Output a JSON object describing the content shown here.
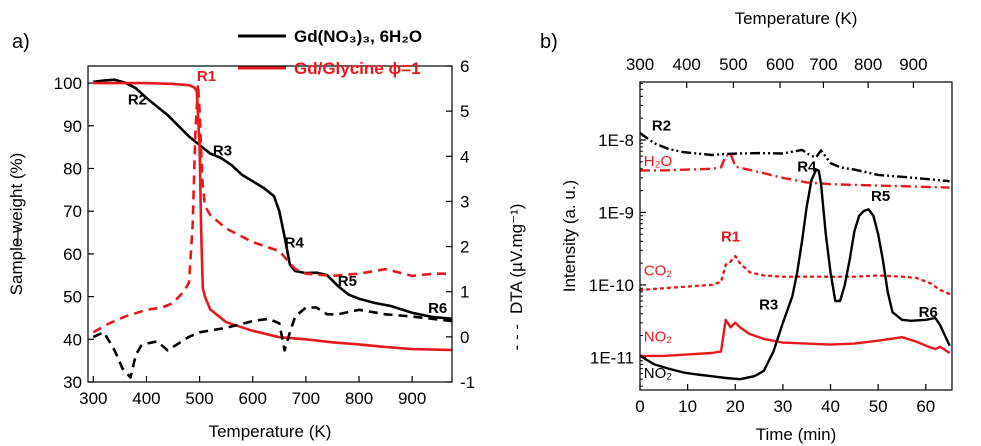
{
  "colors": {
    "black": "#000000",
    "red": "#e8191c"
  },
  "chart_data": [
    {
      "panel_label": "a)",
      "type": "line",
      "xlabel": "Temperature (K)",
      "ylabel_left": "Sample weight (%)",
      "ylabel_left_marker": "—",
      "ylabel_right": "DTA (µV.mg⁻¹)",
      "ylabel_right_marker": "- - -",
      "xlim": [
        290,
        975
      ],
      "ylim_left": [
        30,
        104
      ],
      "ylim_right": [
        -1,
        6
      ],
      "xticks": [
        300,
        400,
        500,
        600,
        700,
        800,
        900
      ],
      "yticks_left": [
        30,
        40,
        50,
        60,
        70,
        80,
        90,
        100
      ],
      "yticks_right": [
        -1,
        0,
        1,
        2,
        3,
        4,
        5,
        6
      ],
      "legend": [
        {
          "text": "Gd(NO₃)₃, 6H₂O",
          "color": "#000000"
        },
        {
          "text": "Gd/Glycine ϕ=1",
          "color": "#e8191c"
        }
      ],
      "annotations": [
        {
          "text": "R1",
          "x": 495,
          "y": 100.5,
          "color": "#e8191c"
        },
        {
          "text": "R2",
          "x": 365,
          "y": 95,
          "color": "#000000"
        },
        {
          "text": "R3",
          "x": 525,
          "y": 83,
          "color": "#000000"
        },
        {
          "text": "R4",
          "x": 660,
          "y": 61.5,
          "color": "#000000"
        },
        {
          "text": "R5",
          "x": 760,
          "y": 52.5,
          "color": "#000000"
        },
        {
          "text": "R6",
          "x": 930,
          "y": 46.2,
          "color": "#000000"
        }
      ],
      "series": [
        {
          "name": "Gd(NO₃)₃, 6H₂O",
          "axis": "left",
          "style": "solid",
          "color": "#000000",
          "x": [
            300,
            320,
            340,
            360,
            380,
            400,
            420,
            440,
            460,
            480,
            500,
            520,
            540,
            560,
            580,
            600,
            620,
            640,
            650,
            660,
            670,
            680,
            700,
            720,
            740,
            760,
            780,
            800,
            830,
            860,
            900,
            940,
            975
          ],
          "y": [
            100.3,
            100.6,
            100.8,
            100.1,
            98.8,
            96.5,
            94.5,
            92.5,
            90,
            87.5,
            85.5,
            83.5,
            82.5,
            80.8,
            78.5,
            77,
            75.5,
            73.5,
            70,
            64,
            57.5,
            56,
            55.5,
            55.6,
            55,
            52.5,
            50.5,
            49.5,
            48.5,
            47.8,
            46.2,
            45.2,
            44.8
          ]
        },
        {
          "name": "Gd/Glycine ϕ=1",
          "axis": "left",
          "style": "solid",
          "color": "#e8191c",
          "x": [
            300,
            350,
            400,
            450,
            480,
            490,
            495,
            500,
            503,
            506,
            510,
            520,
            550,
            600,
            650,
            700,
            750,
            800,
            850,
            900,
            975
          ],
          "y": [
            100,
            100,
            100,
            99.8,
            99.5,
            99,
            98,
            85,
            65,
            52,
            50,
            47,
            44,
            42,
            40.5,
            40,
            39.3,
            38.8,
            38.2,
            37.7,
            37.5
          ]
        },
        {
          "name": "Gd(NO₃)₃, 6H₂O DTA",
          "axis": "right",
          "style": "dashed",
          "color": "#000000",
          "x": [
            300,
            320,
            340,
            355,
            370,
            380,
            390,
            400,
            420,
            440,
            460,
            480,
            500,
            550,
            600,
            630,
            650,
            660,
            670,
            680,
            700,
            720,
            740,
            760,
            800,
            850,
            900,
            975
          ],
          "y": [
            0,
            0.1,
            -0.3,
            -0.7,
            -0.9,
            -0.4,
            -0.2,
            -0.15,
            -0.1,
            -0.3,
            -0.15,
            0,
            0.1,
            0.2,
            0.35,
            0.4,
            0.3,
            -0.3,
            0.1,
            0.45,
            0.65,
            0.65,
            0.5,
            0.5,
            0.6,
            0.5,
            0.45,
            0.35
          ]
        },
        {
          "name": "Gd/Glycine ϕ=1 DTA",
          "axis": "right",
          "style": "dashed",
          "color": "#e8191c",
          "x": [
            300,
            330,
            360,
            400,
            430,
            450,
            470,
            480,
            487,
            492,
            497,
            500,
            505,
            510,
            520,
            550,
            600,
            650,
            680,
            700,
            750,
            800,
            850,
            900,
            940,
            975
          ],
          "y": [
            0.1,
            0.3,
            0.45,
            0.6,
            0.65,
            0.75,
            1.0,
            1.2,
            2.5,
            4.5,
            5.6,
            5.0,
            3.5,
            2.9,
            2.7,
            2.4,
            2.1,
            1.9,
            1.5,
            1.4,
            1.35,
            1.4,
            1.5,
            1.35,
            1.4,
            1.4
          ]
        }
      ]
    },
    {
      "panel_label": "b)",
      "type": "line",
      "xlabel": "Time (min)",
      "x2label": "Temperature (K)",
      "ylabel": "Intensity (a. u.)",
      "y_scale": "log",
      "xlim": [
        0,
        65.5
      ],
      "ylim_log10": [
        -11.45,
        -7.2
      ],
      "xticks": [
        0,
        10,
        20,
        30,
        40,
        50,
        60
      ],
      "x2ticks": [
        300,
        400,
        500,
        600,
        700,
        800,
        900
      ],
      "x2_positions_min": [
        0,
        9.8,
        19.6,
        29.4,
        38.5,
        47.9,
        57.4
      ],
      "yticks": [
        "1E-11",
        "1E-10",
        "1E-9",
        "1E-8"
      ],
      "ytick_values": [
        1e-11,
        1e-10,
        1e-09,
        1e-08
      ],
      "annotations": [
        {
          "text": "R2",
          "x": 2.5,
          "y": 1.35e-08,
          "color": "#000000",
          "bold": true
        },
        {
          "text": "H₂O",
          "x": 0.8,
          "y": 4.4e-09,
          "color": "#e8191c",
          "bold": false
        },
        {
          "text": "R4",
          "x": 33,
          "y": 3.7e-09,
          "color": "#000000",
          "bold": true
        },
        {
          "text": "R1",
          "x": 17,
          "y": 4e-10,
          "color": "#e8191c",
          "bold": true
        },
        {
          "text": "CO₂",
          "x": 0.8,
          "y": 1.35e-10,
          "color": "#e8191c",
          "bold": false
        },
        {
          "text": "R5",
          "x": 48.5,
          "y": 1.45e-09,
          "color": "#000000",
          "bold": true
        },
        {
          "text": "R3",
          "x": 25,
          "y": 4.6e-11,
          "color": "#000000",
          "bold": true
        },
        {
          "text": "R6",
          "x": 58.5,
          "y": 3.6e-11,
          "color": "#000000",
          "bold": true
        },
        {
          "text": "NO₂",
          "x": 0.8,
          "y": 1.65e-11,
          "color": "#e8191c",
          "bold": false
        },
        {
          "text": "NO₂",
          "x": 0.8,
          "y": 5.2e-12,
          "color": "#000000",
          "bold": false
        }
      ],
      "series": [
        {
          "name": "H₂O (Gd(NO₃)₃)",
          "style": "dashdotdot",
          "color": "#000000",
          "x": [
            0,
            3,
            6,
            9,
            12,
            15,
            18,
            21,
            25,
            30,
            34,
            36,
            37,
            38,
            40,
            42,
            45,
            50,
            55,
            60,
            65
          ],
          "y": [
            1.25e-08,
            9e-09,
            7.5e-09,
            6.8e-09,
            6.5e-09,
            6.2e-09,
            6.4e-09,
            6.5e-09,
            6.6e-09,
            6.5e-09,
            7.3e-09,
            6e-09,
            5.8e-09,
            7.2e-09,
            4.8e-09,
            4.2e-09,
            3.9e-09,
            3.3e-09,
            3.1e-09,
            2.9e-09,
            2.7e-09
          ]
        },
        {
          "name": "H₂O (Gd/Glycine)",
          "style": "dashdot",
          "color": "#e8191c",
          "x": [
            0,
            5,
            10,
            15,
            17,
            18,
            19,
            20,
            22,
            25,
            30,
            35,
            40,
            45,
            50,
            55,
            60,
            65
          ],
          "y": [
            3.8e-09,
            3.8e-09,
            3.9e-09,
            4e-09,
            4.2e-09,
            6e-09,
            6.5e-09,
            4.3e-09,
            4e-09,
            3.6e-09,
            3e-09,
            2.6e-09,
            2.45e-09,
            2.4e-09,
            2.35e-09,
            2.3e-09,
            2.25e-09,
            2.2e-09
          ]
        },
        {
          "name": "CO₂ (Gd/Glycine)",
          "style": "dotted",
          "color": "#e8191c",
          "x": [
            0,
            5,
            10,
            15,
            17,
            18,
            19,
            20,
            21,
            23,
            26,
            30,
            35,
            40,
            45,
            50,
            55,
            58,
            61,
            63,
            65
          ],
          "y": [
            8.5e-11,
            9e-11,
            9.5e-11,
            1e-10,
            1.1e-10,
            1.9e-10,
            2.1e-10,
            2.5e-10,
            2e-10,
            1.5e-10,
            1.35e-10,
            1.3e-10,
            1.3e-10,
            1.3e-10,
            1.3e-10,
            1.35e-10,
            1.3e-10,
            1.25e-10,
            1.05e-10,
            8.5e-11,
            7.5e-11
          ]
        },
        {
          "name": "NO₂ (Gd/Glycine)",
          "style": "solid",
          "color": "#e8191c",
          "x": [
            0,
            5,
            10,
            15,
            17,
            18,
            19,
            20,
            21,
            23,
            26,
            30,
            35,
            40,
            45,
            50,
            55,
            58,
            60,
            62,
            63,
            65
          ],
          "y": [
            1.05e-11,
            1.05e-11,
            1.1e-11,
            1.15e-11,
            1.2e-11,
            3.3e-11,
            2.6e-11,
            3e-11,
            2.6e-11,
            2.1e-11,
            1.8e-11,
            1.6e-11,
            1.55e-11,
            1.5e-11,
            1.55e-11,
            1.7e-11,
            1.9e-11,
            1.65e-11,
            1.45e-11,
            1.3e-11,
            1.4e-11,
            1.15e-11
          ]
        },
        {
          "name": "NO₂ (Gd(NO₃)₃)",
          "style": "solid",
          "color": "#000000",
          "x": [
            0,
            3,
            6,
            9,
            12,
            15,
            18,
            21,
            24,
            26,
            28,
            30,
            32,
            33,
            34,
            35,
            36,
            37,
            37.5,
            38,
            39,
            40,
            41,
            42,
            43,
            44,
            45,
            46,
            47,
            48,
            49,
            50,
            51,
            52,
            53,
            55,
            57,
            60,
            62,
            63,
            65
          ],
          "y": [
            1.05e-11,
            8e-12,
            7e-12,
            6.2e-12,
            5.8e-12,
            5.5e-12,
            5.2e-12,
            5e-12,
            5.5e-12,
            6.5e-12,
            1.2e-11,
            3e-11,
            7e-11,
            1.5e-10,
            4e-10,
            1.2e-09,
            2.8e-09,
            3.9e-09,
            3.8e-09,
            2.5e-09,
            5e-10,
            1.5e-10,
            6e-11,
            6e-11,
            1e-10,
            2.2e-10,
            5.5e-10,
            9e-10,
            1.05e-09,
            1.1e-09,
            9e-10,
            5e-10,
            2.2e-10,
            8e-11,
            4.2e-11,
            3.3e-11,
            3.2e-11,
            3.3e-11,
            3.5e-11,
            2.8e-11,
            1.45e-11
          ]
        }
      ]
    }
  ]
}
